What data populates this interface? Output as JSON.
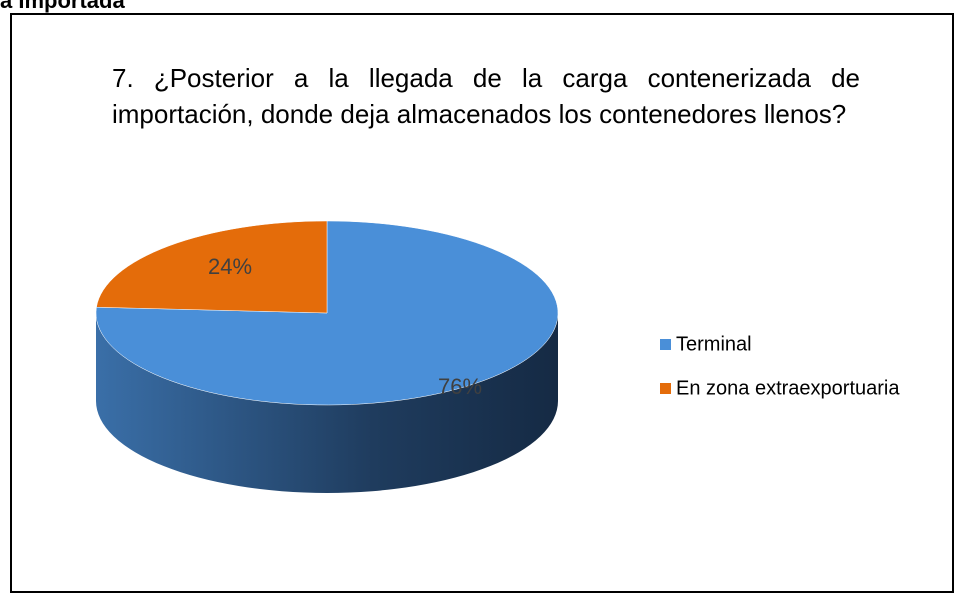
{
  "heading": "a Importada",
  "chart_data": {
    "type": "pie",
    "title": "7. ¿Posterior a la llegada de la carga contenerizada de importación, donde deja almacenados los contenedores llenos?",
    "categories": [
      "Terminal",
      "En zona extraexportuaria"
    ],
    "values": [
      76,
      24
    ],
    "value_labels": [
      "76%",
      "24%"
    ],
    "colors": [
      "#4a8fd8",
      "#e46c0a"
    ],
    "legend": "right"
  }
}
